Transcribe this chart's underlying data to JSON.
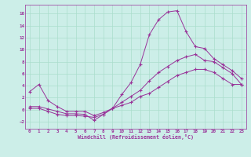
{
  "xlabel": "Windchill (Refroidissement éolien,°C)",
  "bg_color": "#cceee8",
  "line_color": "#993399",
  "grid_color": "#aaddcc",
  "xlim": [
    -0.5,
    23.5
  ],
  "ylim": [
    -3.2,
    17.5
  ],
  "xticks": [
    0,
    1,
    2,
    3,
    4,
    5,
    6,
    7,
    8,
    9,
    10,
    11,
    12,
    13,
    14,
    15,
    16,
    17,
    18,
    19,
    20,
    21,
    22,
    23
  ],
  "yticks": [
    -2,
    0,
    2,
    4,
    6,
    8,
    10,
    12,
    14,
    16
  ],
  "line1_x": [
    0,
    1,
    2,
    3,
    4,
    5,
    6,
    7,
    8,
    9,
    10,
    11,
    12,
    13,
    14,
    15,
    16,
    17,
    18,
    19,
    20,
    21,
    22,
    23
  ],
  "line1_y": [
    3.0,
    4.2,
    1.5,
    0.5,
    -0.3,
    -0.3,
    -0.3,
    -1.0,
    -0.5,
    0.2,
    2.5,
    4.5,
    7.5,
    12.5,
    15.0,
    16.3,
    16.5,
    13.0,
    10.5,
    10.2,
    8.5,
    7.5,
    6.5,
    5.2
  ],
  "line2_x": [
    0,
    1,
    2,
    3,
    4,
    5,
    6,
    7,
    8,
    9,
    10,
    11,
    12,
    13,
    14,
    15,
    16,
    17,
    18,
    19,
    20,
    21,
    22,
    23
  ],
  "line2_y": [
    0.5,
    0.5,
    0.1,
    -0.3,
    -0.7,
    -0.7,
    -0.8,
    -1.8,
    -0.8,
    0.2,
    1.2,
    2.2,
    3.2,
    4.8,
    6.2,
    7.2,
    8.2,
    8.8,
    9.2,
    8.2,
    8.0,
    7.0,
    6.0,
    4.2
  ],
  "line3_x": [
    0,
    1,
    2,
    3,
    4,
    5,
    6,
    7,
    8,
    9,
    10,
    11,
    12,
    13,
    14,
    15,
    16,
    17,
    18,
    19,
    20,
    21,
    22,
    23
  ],
  "line3_y": [
    0.2,
    0.2,
    -0.3,
    -0.8,
    -1.0,
    -1.0,
    -1.1,
    -1.3,
    -0.8,
    0.2,
    0.7,
    1.2,
    2.2,
    2.7,
    3.7,
    4.7,
    5.7,
    6.2,
    6.7,
    6.7,
    6.2,
    5.2,
    4.2,
    4.2
  ]
}
